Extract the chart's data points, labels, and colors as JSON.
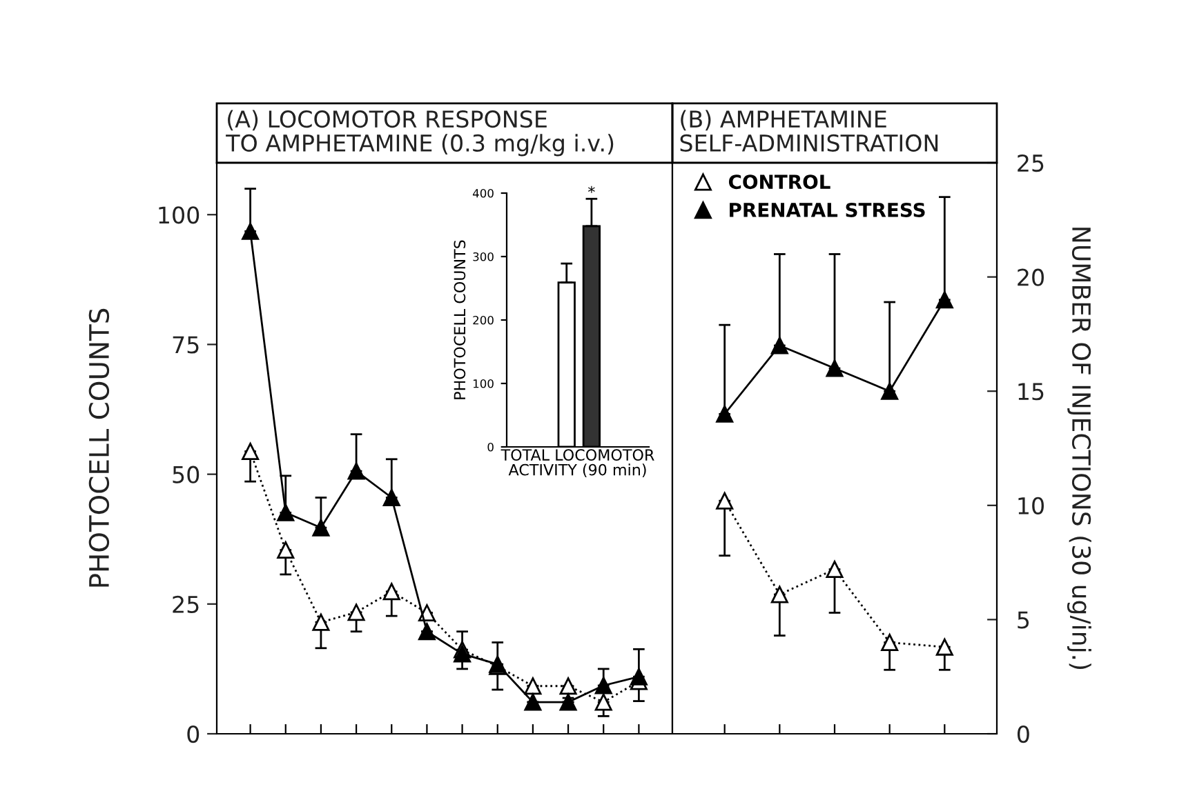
{
  "chart_data": [
    {
      "type": "line",
      "title": "(A) LOCOMOTOR RESPONSE\nTO AMPHETAMINE (0.3 mg/kg i.v.)",
      "ylabel": "PHOTOCELL COUNTS",
      "categories": [
        null,
        null,
        null,
        null,
        null,
        null,
        null,
        null,
        null,
        null,
        null,
        null
      ],
      "ylim": [
        0,
        110
      ],
      "yticks": [
        0,
        25,
        50,
        75,
        100
      ],
      "grid": false,
      "legend": false,
      "marker": "triangle",
      "tick_labels": "y",
      "series": [
        {
          "color": "#000000",
          "line_style": "dotted",
          "values": [
            54.4,
            35.4,
            21.5,
            23.4,
            27.4,
            23.3,
            16.2,
            13,
            9.2,
            9.2,
            6.1,
            10.1
          ],
          "errors": [
            [
              48.6,
              54.4
            ],
            [
              30.7,
              35.4
            ],
            [
              16.5,
              21.5
            ],
            [
              19.7,
              23.4
            ],
            [
              22.7,
              27.4
            ],
            null,
            [
              12.5,
              16.2
            ],
            [
              8.5,
              13
            ],
            null,
            [
              6.9,
              9.2
            ],
            [
              3.4,
              6.1
            ],
            [
              6.3,
              10.1
            ]
          ]
        },
        {
          "color": "#000000",
          "line_style": "solid",
          "values": [
            96.8,
            42.6,
            39.7,
            50.6,
            45.5,
            19.7,
            15.4,
            13.4,
            6.1,
            6.1,
            9.3,
            11
          ],
          "errors": [
            [
              96.8,
              105
            ],
            [
              42.6,
              49.7
            ],
            [
              39.7,
              45.5
            ],
            [
              50.6,
              57.7
            ],
            [
              45.5,
              52.9
            ],
            null,
            [
              15.4,
              19.7
            ],
            [
              13.4,
              17.6
            ],
            null,
            null,
            [
              9.3,
              12.5
            ],
            [
              11,
              16.3
            ]
          ]
        }
      ]
    },
    {
      "type": "bar",
      "xlabel": "TOTAL LOCOMOTOR\nACTIVITY (90 min)",
      "ylabel": "PHOTOCELL COUNTS",
      "categories": [
        null,
        null
      ],
      "values": [
        259,
        348
      ],
      "colors": [
        "#ffffff",
        "#333333"
      ],
      "errors": [
        [
          259,
          289
        ],
        [
          348,
          391
        ]
      ],
      "ylim": [
        0,
        400
      ],
      "yticks": [
        0,
        100,
        200,
        300,
        400
      ],
      "grid": false,
      "annotations": [
        {
          "text": "*",
          "y": 400
        }
      ]
    },
    {
      "type": "line",
      "title": "(B) AMPHETAMINE\nSELF-ADMINISTRATION",
      "ylabel": "NUMBER OF INJECTIONS (30 ug/inj.)",
      "categories": [
        null,
        null,
        null,
        null,
        null
      ],
      "ylim": [
        0,
        25
      ],
      "yticks": [
        0,
        5,
        10,
        15,
        20,
        25
      ],
      "grid": false,
      "legend": "top left",
      "marker": "triangle",
      "series": [
        {
          "name": "CONTROL",
          "color": "#000000",
          "line_style": "dotted",
          "values": [
            10.2,
            6.1,
            7.2,
            4.0,
            3.8
          ],
          "errors": [
            [
              7.8,
              10.2
            ],
            [
              4.3,
              6.1
            ],
            [
              5.3,
              7.2
            ],
            [
              2.8,
              4.0
            ],
            [
              2.8,
              3.8
            ]
          ]
        },
        {
          "name": "PRENATAL STRESS",
          "color": "#000000",
          "line_style": "solid",
          "values": [
            14,
            17,
            16,
            15,
            19
          ],
          "errors": [
            [
              14,
              17.9
            ],
            [
              17,
              21
            ],
            [
              16,
              21
            ],
            [
              15,
              18.9
            ],
            [
              19,
              23.5
            ]
          ]
        }
      ]
    }
  ]
}
